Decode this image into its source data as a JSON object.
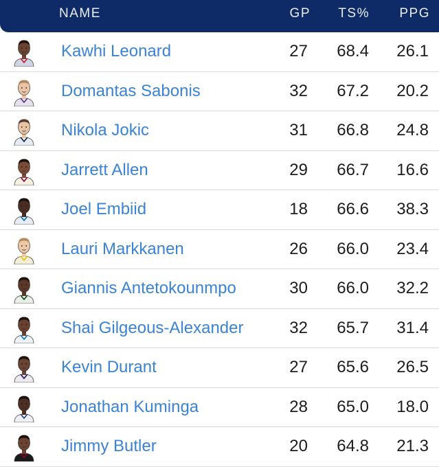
{
  "header": {
    "name": "NAME",
    "gp": "GP",
    "ts": "TS%",
    "ppg": "PPG"
  },
  "rows": [
    {
      "name": "Kawhi Leonard",
      "gp": "27",
      "ts": "68.4",
      "ppg": "26.1",
      "skin": "#6b4332",
      "hair": "#1f1410",
      "jersey": "#cfd7e6",
      "accent": "#c8102e"
    },
    {
      "name": "Domantas Sabonis",
      "gp": "32",
      "ts": "67.2",
      "ppg": "20.2",
      "skin": "#e8c3a4",
      "hair": "#b08960",
      "jersey": "#e6e1ef",
      "accent": "#5a2d81"
    },
    {
      "name": "Nikola Jokic",
      "gp": "31",
      "ts": "66.8",
      "ppg": "24.8",
      "skin": "#e7c2a3",
      "hair": "#5a4030",
      "jersey": "#e7ebf2",
      "accent": "#0e2240"
    },
    {
      "name": "Jarrett Allen",
      "gp": "29",
      "ts": "66.7",
      "ppg": "16.6",
      "skin": "#7a4b36",
      "hair": "#1a120e",
      "jersey": "#f4efe1",
      "accent": "#860038"
    },
    {
      "name": "Joel Embiid",
      "gp": "18",
      "ts": "66.6",
      "ppg": "38.3",
      "skin": "#4a2d22",
      "hair": "#1b120e",
      "jersey": "#e8ecf4",
      "accent": "#006bb6"
    },
    {
      "name": "Lauri Markkanen",
      "gp": "26",
      "ts": "66.0",
      "ppg": "23.4",
      "skin": "#ecc8a8",
      "hair": "#b38b5c",
      "jersey": "#f3efd6",
      "accent": "#e2c200"
    },
    {
      "name": "Giannis Antetokounmpo",
      "gp": "30",
      "ts": "66.0",
      "ppg": "32.2",
      "skin": "#5a3727",
      "hair": "#1b120e",
      "jersey": "#e9efe6",
      "accent": "#00471b"
    },
    {
      "name": "Shai Gilgeous-Alexander",
      "gp": "32",
      "ts": "65.7",
      "ppg": "31.4",
      "skin": "#6a4130",
      "hair": "#1b120e",
      "jersey": "#eef1f6",
      "accent": "#007ac1"
    },
    {
      "name": "Kevin Durant",
      "gp": "27",
      "ts": "65.6",
      "ppg": "26.5",
      "skin": "#6a4332",
      "hair": "#1b120e",
      "jersey": "#ece9ef",
      "accent": "#1d1160"
    },
    {
      "name": "Jonathan Kuminga",
      "gp": "28",
      "ts": "65.0",
      "ppg": "18.0",
      "skin": "#4d2e22",
      "hair": "#1b120e",
      "jersey": "#eef0f4",
      "accent": "#1d428a"
    },
    {
      "name": "Jimmy Butler",
      "gp": "20",
      "ts": "64.8",
      "ppg": "21.3",
      "skin": "#6b4332",
      "hair": "#1b120e",
      "jersey": "#1a1a1a",
      "accent": "#98002e"
    }
  ]
}
